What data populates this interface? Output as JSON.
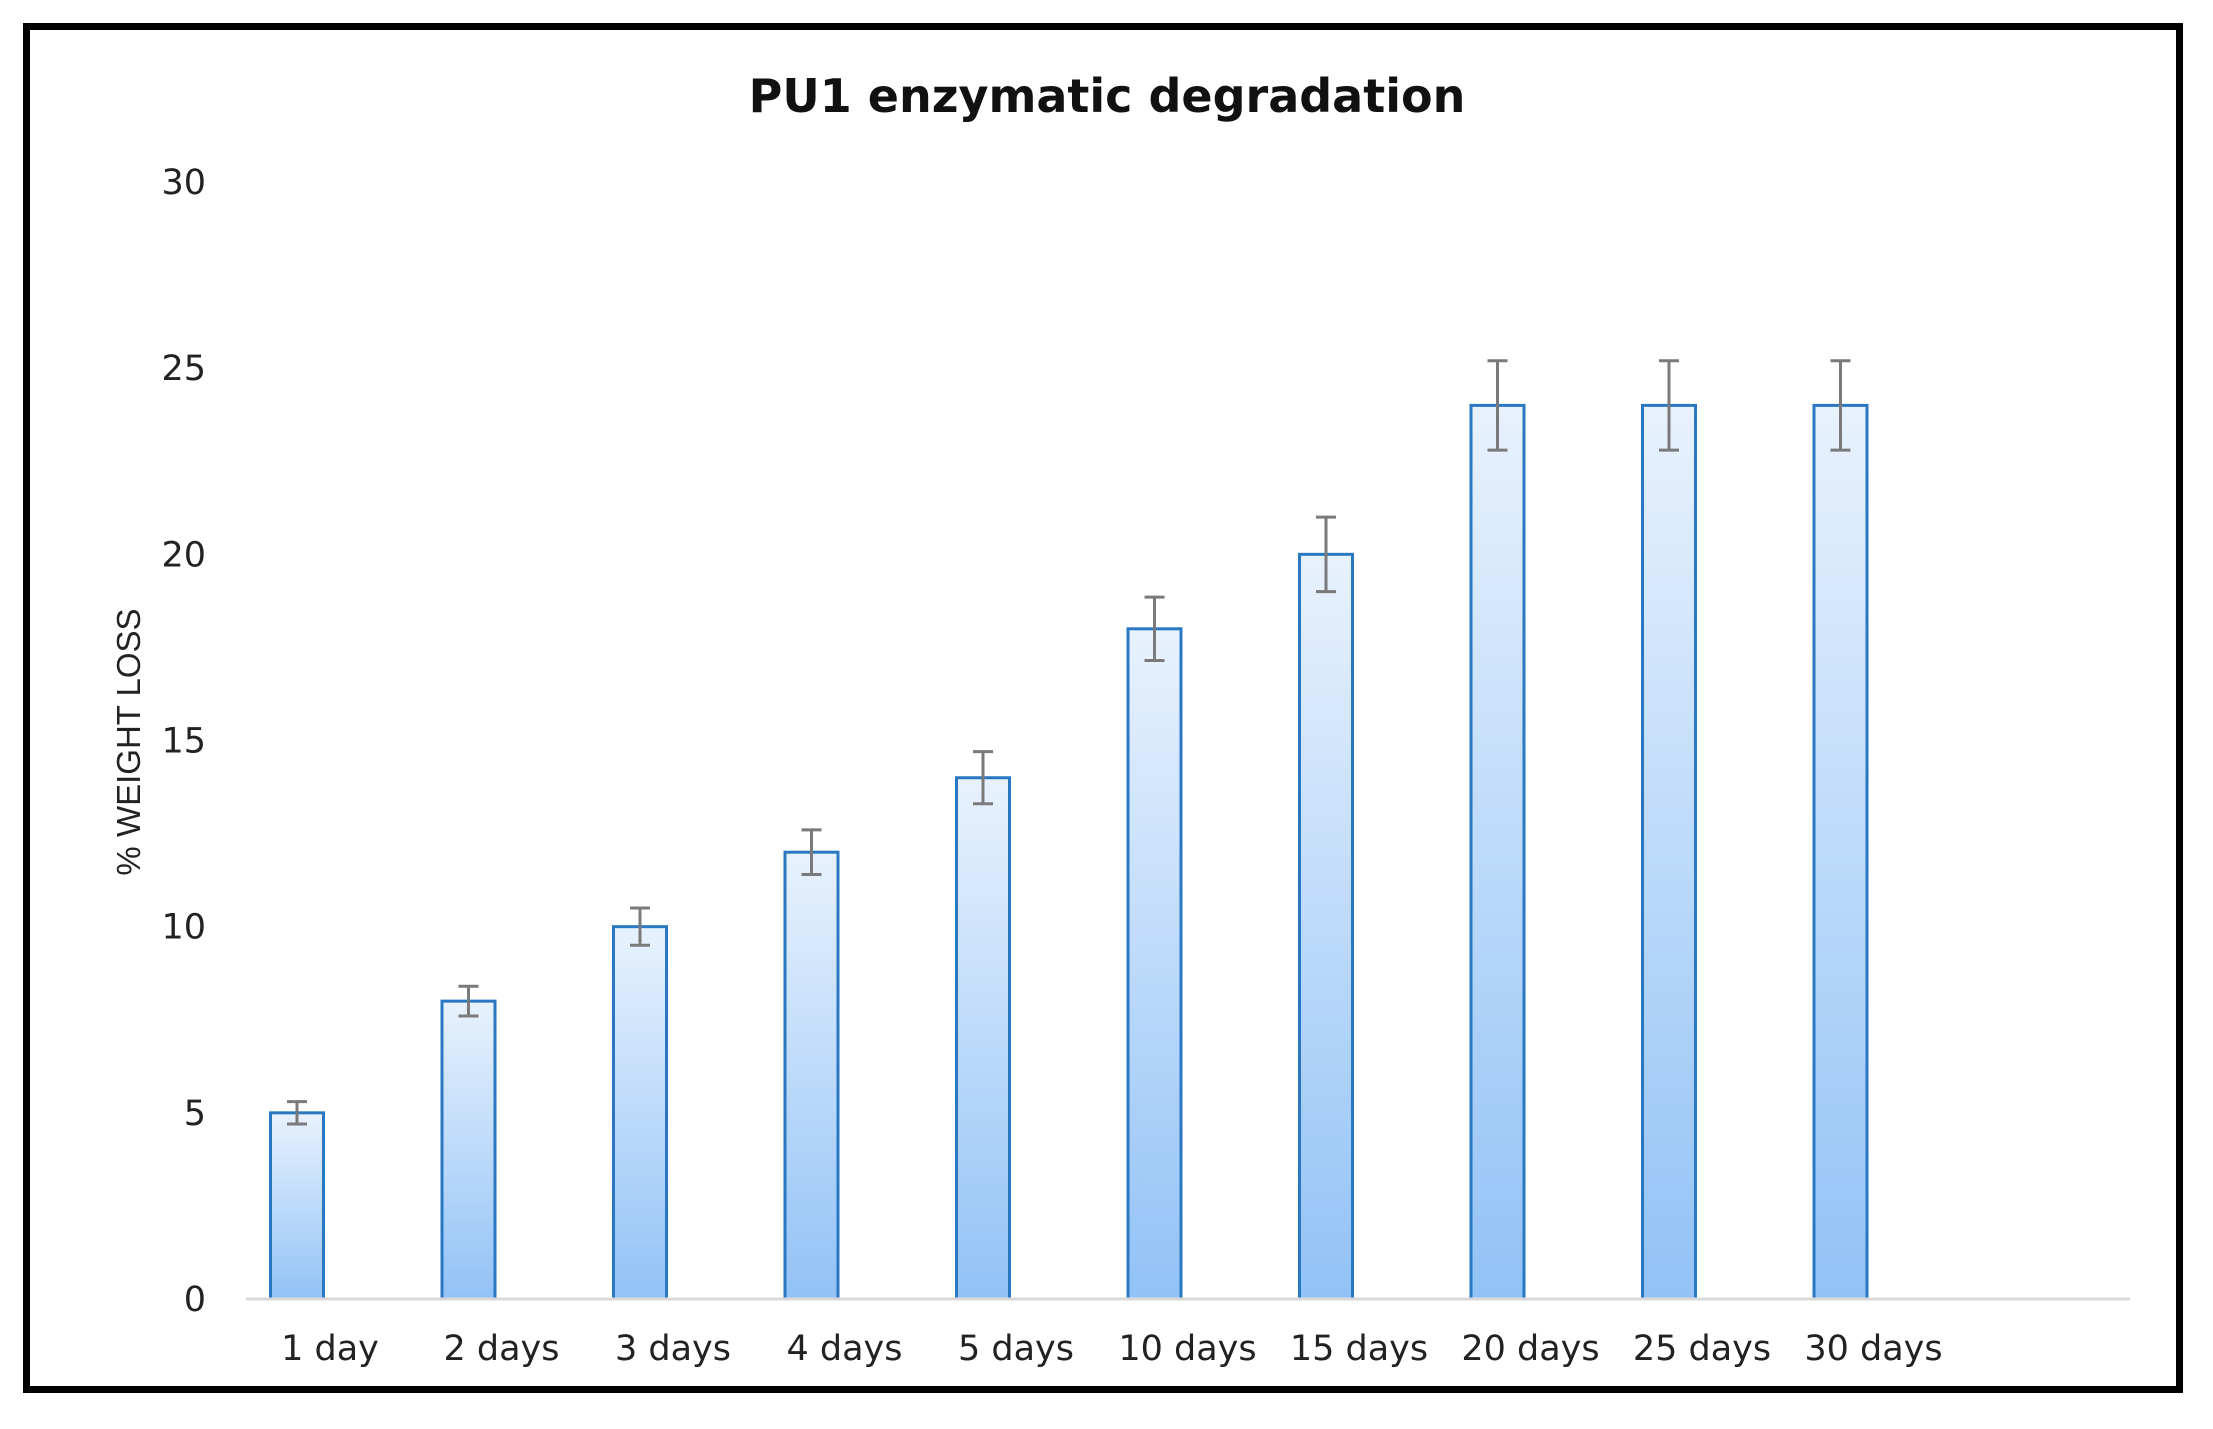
{
  "chart_data": {
    "type": "bar",
    "title": "PU1 enzymatic degradation",
    "xlabel": "",
    "ylabel": "% WEIGHT LOSS",
    "ylim": [
      0,
      30
    ],
    "yticks": [
      0,
      5,
      10,
      15,
      20,
      25,
      30
    ],
    "categories": [
      "1 day",
      "2 days",
      "3 days",
      "4 days",
      "5 days",
      "10 days",
      "15 days",
      "20 days",
      "25 days",
      "30 days"
    ],
    "values": [
      5,
      8,
      10,
      12,
      14,
      18,
      20,
      24,
      24,
      24
    ],
    "error": [
      0.3,
      0.4,
      0.5,
      0.6,
      0.7,
      0.85,
      1.0,
      1.2,
      1.2,
      1.2
    ],
    "grid": false,
    "colors": {
      "bar_fill_top": "#e8f2fd",
      "bar_fill_bottom": "#92c2f6",
      "bar_stroke": "#2a78c2",
      "error_bar": "#7a7a7a",
      "axis": "#d9d9d9"
    }
  }
}
